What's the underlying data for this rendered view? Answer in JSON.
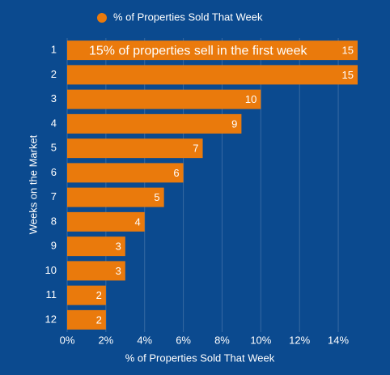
{
  "chart_data": {
    "type": "barh",
    "xlabel": "% of Properties Sold That Week",
    "ylabel": "Weeks on the Market",
    "annotation": "15% of properties sell in the first week",
    "categories": [
      "1",
      "2",
      "3",
      "4",
      "5",
      "6",
      "7",
      "8",
      "9",
      "10",
      "11",
      "12"
    ],
    "series": [
      {
        "name": "% of Properties Sold That Week",
        "color": "#ea7a0c",
        "values": [
          15,
          15,
          10,
          9,
          7,
          6,
          5,
          4,
          3,
          3,
          2,
          2
        ]
      }
    ],
    "xlim": [
      0,
      15
    ],
    "xticks": [
      {
        "value": 0,
        "label": "0%"
      },
      {
        "value": 2,
        "label": "2%"
      },
      {
        "value": 4,
        "label": "4%"
      },
      {
        "value": 6,
        "label": "6%"
      },
      {
        "value": 8,
        "label": "8%"
      },
      {
        "value": 10,
        "label": "10%"
      },
      {
        "value": 12,
        "label": "12%"
      },
      {
        "value": 14,
        "label": "14%"
      }
    ],
    "grid": true,
    "legend": "top"
  }
}
